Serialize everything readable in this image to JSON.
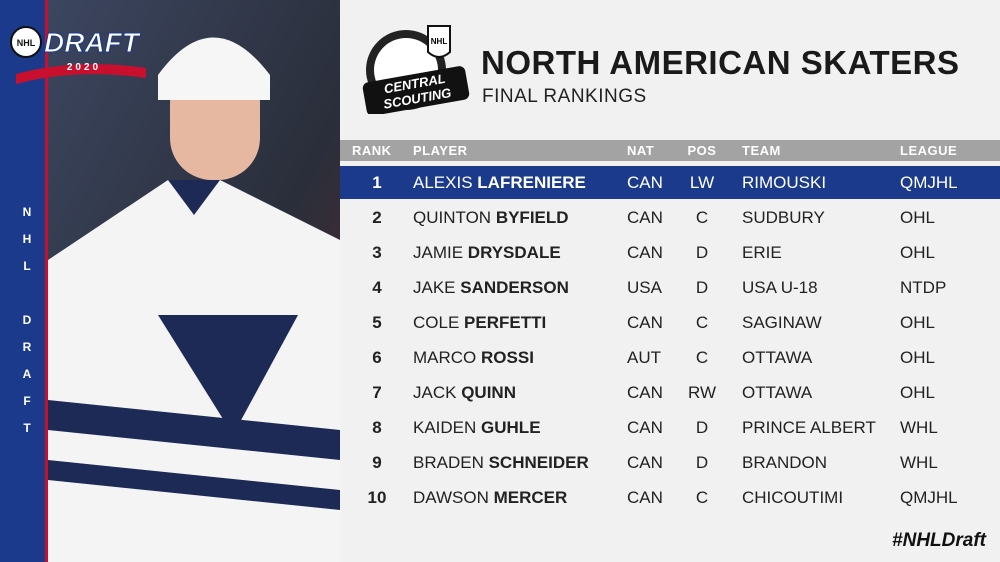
{
  "logo": {
    "league": "NHL",
    "event": "DRAFT",
    "year": "2020"
  },
  "side_text": "NHL DRAFT",
  "scouting_logo": {
    "league": "NHL",
    "line1": "CENTRAL",
    "line2": "SCOUTING"
  },
  "header": {
    "title": "NORTH AMERICAN SKATERS",
    "subtitle": "FINAL RANKINGS"
  },
  "table": {
    "columns": [
      "RANK",
      "PLAYER",
      "NAT",
      "POS",
      "TEAM",
      "LEAGUE"
    ],
    "rows": [
      {
        "rank": 1,
        "first": "ALEXIS",
        "last": "LAFRENIERE",
        "nat": "CAN",
        "pos": "LW",
        "team": "RIMOUSKI",
        "league": "QMJHL"
      },
      {
        "rank": 2,
        "first": "QUINTON",
        "last": "BYFIELD",
        "nat": "CAN",
        "pos": "C",
        "team": "SUDBURY",
        "league": "OHL"
      },
      {
        "rank": 3,
        "first": "JAMIE",
        "last": "DRYSDALE",
        "nat": "CAN",
        "pos": "D",
        "team": "ERIE",
        "league": "OHL"
      },
      {
        "rank": 4,
        "first": "JAKE",
        "last": "SANDERSON",
        "nat": "USA",
        "pos": "D",
        "team": "USA U-18",
        "league": "NTDP"
      },
      {
        "rank": 5,
        "first": "COLE",
        "last": "PERFETTI",
        "nat": "CAN",
        "pos": "C",
        "team": "SAGINAW",
        "league": "OHL"
      },
      {
        "rank": 6,
        "first": "MARCO",
        "last": "ROSSI",
        "nat": "AUT",
        "pos": "C",
        "team": "OTTAWA",
        "league": "OHL"
      },
      {
        "rank": 7,
        "first": "JACK",
        "last": "QUINN",
        "nat": "CAN",
        "pos": "RW",
        "team": "OTTAWA",
        "league": "OHL"
      },
      {
        "rank": 8,
        "first": "KAIDEN",
        "last": "GUHLE",
        "nat": "CAN",
        "pos": "D",
        "team": "PRINCE ALBERT",
        "league": "WHL"
      },
      {
        "rank": 9,
        "first": "BRADEN",
        "last": "SCHNEIDER",
        "nat": "CAN",
        "pos": "D",
        "team": "BRANDON",
        "league": "WHL"
      },
      {
        "rank": 10,
        "first": "DAWSON",
        "last": "MERCER",
        "nat": "CAN",
        "pos": "C",
        "team": "CHICOUTIMI",
        "league": "QMJHL"
      }
    ]
  },
  "hashtag": "#NHLDraft"
}
